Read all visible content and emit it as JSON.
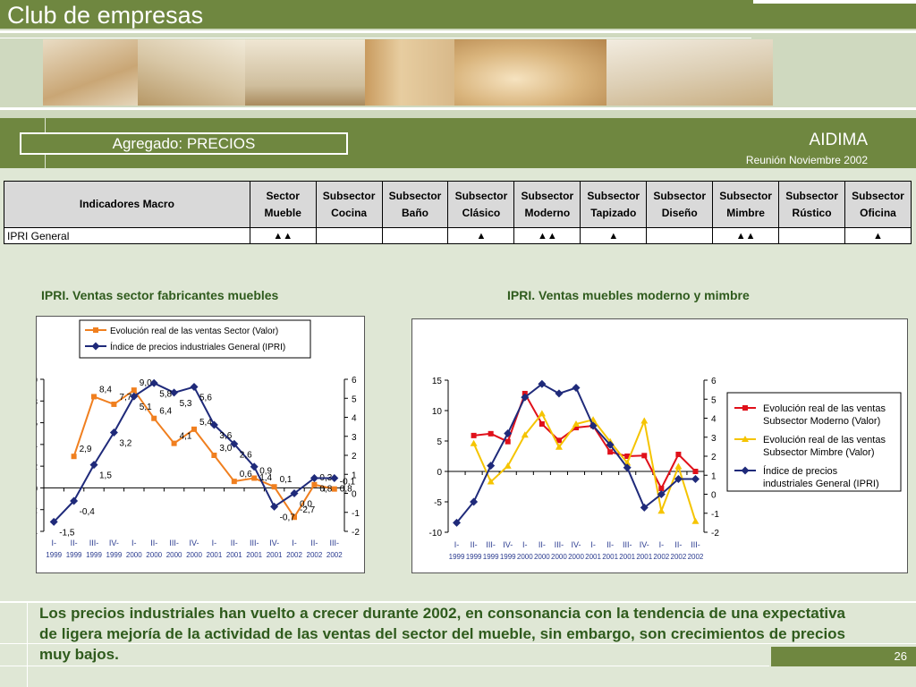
{
  "header": {
    "title": "Club de empresas",
    "section_label": "Agregado: PRECIOS",
    "org": "AIDIMA",
    "meeting": "Reunión Noviembre 2002"
  },
  "table": {
    "header_first": "Indicadores Macro",
    "columns": [
      [
        "Sector",
        "Mueble"
      ],
      [
        "Subsector",
        "Cocina"
      ],
      [
        "Subsector",
        "Baño"
      ],
      [
        "Subsector",
        "Clásico"
      ],
      [
        "Subsector",
        "Moderno"
      ],
      [
        "Subsector",
        "Tapizado"
      ],
      [
        "Subsector",
        "Diseño"
      ],
      [
        "Subsector",
        "Mimbre"
      ],
      [
        "Subsector",
        "Rústico"
      ],
      [
        "Subsector",
        "Oficina"
      ]
    ],
    "rows": [
      {
        "label": "IPRI General",
        "cells": [
          "▲▲",
          "",
          "",
          "▲",
          "▲▲",
          "▲",
          "",
          "▲▲",
          "",
          "▲"
        ]
      }
    ]
  },
  "chart_titles": {
    "left": "IPRI. Ventas sector fabricantes muebles",
    "right": "IPRI. Ventas muebles moderno y mimbre"
  },
  "chart_data": [
    {
      "type": "line",
      "title": "IPRI. Ventas sector fabricantes muebles",
      "categories": [
        [
          "I-",
          "1999"
        ],
        [
          "II-",
          "1999"
        ],
        [
          "III-",
          "1999"
        ],
        [
          "IV-",
          "1999"
        ],
        [
          "I-",
          "2000"
        ],
        [
          "II-",
          "2000"
        ],
        [
          "III-",
          "2000"
        ],
        [
          "IV-",
          "2000"
        ],
        [
          "I-",
          "2001"
        ],
        [
          "II-",
          "2001"
        ],
        [
          "III-",
          "2001"
        ],
        [
          "IV-",
          "2001"
        ],
        [
          "I-",
          "2002"
        ],
        [
          "II-",
          "2002"
        ],
        [
          "III-",
          "2002"
        ]
      ],
      "y_left": {
        "min": -4,
        "max": 10,
        "ticks": [
          -4,
          -2,
          0,
          2,
          4,
          6,
          8,
          10
        ]
      },
      "y_right": {
        "min": -2,
        "max": 6,
        "ticks": [
          -2,
          -1,
          0,
          1,
          2,
          3,
          4,
          5,
          6
        ]
      },
      "legend_position": "top",
      "series": [
        {
          "name": "Evolución real de las ventas Sector (Valor)",
          "axis": "left",
          "color": "#f07f1f",
          "marker": "square",
          "values": [
            null,
            2.9,
            8.4,
            7.7,
            9.0,
            6.4,
            4.1,
            5.4,
            3.0,
            0.6,
            0.9,
            0.1,
            -2.7,
            0.3,
            -0.1
          ],
          "labels": [
            null,
            "2,9",
            "8,4",
            "7,7",
            "9,0",
            "6,4",
            "4,1",
            "5,4",
            "3,0",
            "0,6",
            "0,9",
            "0,1",
            "-2,7",
            "0,3",
            "-0,1"
          ]
        },
        {
          "name": "Índice de precios industriales General (IPRI)",
          "axis": "right",
          "color": "#1f2a7a",
          "marker": "diamond",
          "values": [
            -1.5,
            -0.4,
            1.5,
            3.2,
            5.1,
            5.8,
            5.3,
            5.6,
            3.6,
            2.6,
            1.4,
            -0.7,
            0.0,
            0.8,
            0.8
          ],
          "labels": [
            "-1,5",
            "-0,4",
            "1,5",
            "3,2",
            "5,1",
            "5,8",
            "5,3",
            "5,6",
            "3,6",
            "2,6",
            "1,4",
            "-0,7",
            "0,0",
            "0,8",
            "0,8"
          ]
        }
      ]
    },
    {
      "type": "line",
      "title": "IPRI. Ventas muebles moderno y mimbre",
      "categories": [
        [
          "I-",
          "1999"
        ],
        [
          "II-",
          "1999"
        ],
        [
          "III-",
          "1999"
        ],
        [
          "IV-",
          "1999"
        ],
        [
          "I-",
          "2000"
        ],
        [
          "II-",
          "2000"
        ],
        [
          "III-",
          "2000"
        ],
        [
          "IV-",
          "2000"
        ],
        [
          "I-",
          "2001"
        ],
        [
          "II-",
          "2001"
        ],
        [
          "III-",
          "2001"
        ],
        [
          "IV-",
          "2001"
        ],
        [
          "I-",
          "2002"
        ],
        [
          "II-",
          "2002"
        ],
        [
          "III-",
          "2002"
        ]
      ],
      "y_left": {
        "min": -10,
        "max": 15,
        "ticks": [
          -10,
          -5,
          0,
          5,
          10,
          15
        ]
      },
      "y_right": {
        "min": -2,
        "max": 6,
        "ticks": [
          -2,
          -1,
          0,
          1,
          2,
          3,
          4,
          5,
          6
        ]
      },
      "legend_position": "right",
      "series": [
        {
          "name": "Evolución real de las ventas Subsector Moderno (Valor)",
          "axis": "left",
          "color": "#e0101a",
          "marker": "square",
          "values": [
            null,
            5.9,
            6.2,
            4.9,
            12.8,
            7.8,
            5.1,
            7.2,
            7.5,
            3.2,
            2.5,
            2.6,
            -2.8,
            2.8,
            0.0
          ]
        },
        {
          "name": "Evolución real de las ventas Subsector Mimbre (Valor)",
          "axis": "left",
          "color": "#f5c400",
          "marker": "triangle",
          "values": [
            null,
            4.6,
            -1.7,
            0.9,
            6.0,
            9.5,
            4.0,
            7.8,
            8.5,
            4.9,
            1.4,
            8.3,
            -6.5,
            0.8,
            -8.2
          ]
        },
        {
          "name": "Índice de precios industriales General (IPRI)",
          "axis": "right",
          "color": "#1f2a7a",
          "marker": "diamond",
          "values": [
            -1.5,
            -0.4,
            1.5,
            3.2,
            5.1,
            5.8,
            5.3,
            5.6,
            3.6,
            2.6,
            1.4,
            -0.7,
            0.0,
            0.8,
            0.8
          ]
        }
      ]
    }
  ],
  "summary": "Los precios industriales han vuelto a crecer durante 2002, en consonancia con la tendencia de una expectativa de ligera mejoría de la actividad de las ventas del sector del mueble, sin embargo, son crecimientos de precios muy bajos.",
  "page_number": "26",
  "colors": {
    "brand_green": "#6f8740",
    "title_green": "#2f5b1d",
    "background": "#dfe7d5"
  }
}
